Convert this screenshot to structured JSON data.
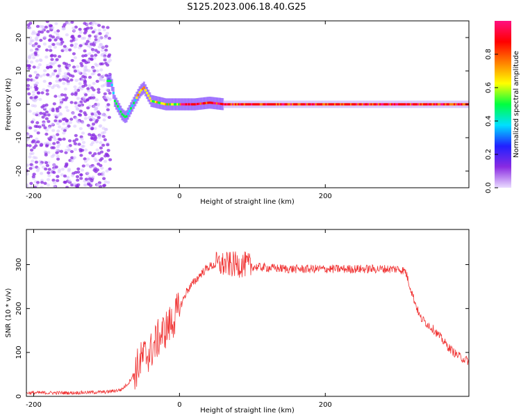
{
  "title": "S125.2023.006.18.40.G25",
  "chart_data": [
    {
      "type": "heatmap",
      "xlabel": "Height of straight line (km)",
      "ylabel": "Frequency (Hz)",
      "xlim": [
        -210,
        397
      ],
      "ylim": [
        -25,
        25
      ],
      "xticks": [
        -200,
        0,
        200
      ],
      "yticks": [
        -20,
        -10,
        0,
        10,
        20
      ],
      "colorbar": {
        "label": "Normalized spectral amplitude",
        "range": [
          0,
          1
        ],
        "ticks": [
          "0.0",
          "0.2",
          "0.4",
          "0.6",
          "0.8"
        ],
        "colors": [
          "#eadcff",
          "#8a2be2",
          "#2020ff",
          "#00e0ff",
          "#00ff40",
          "#ffff00",
          "#ff8000",
          "#ff0000",
          "#ff1080"
        ]
      },
      "ridge": {
        "x": [
          -100,
          -95,
          -90,
          -85,
          -80,
          -75,
          -70,
          -65,
          -60,
          -55,
          -50,
          -45,
          -40,
          -30,
          -20,
          0,
          20,
          40,
          60,
          100,
          180,
          250,
          300,
          397
        ],
        "y": [
          7,
          7,
          1,
          -1,
          -3,
          -4,
          -2,
          0,
          2,
          4,
          5,
          3,
          1,
          0.5,
          0,
          0,
          0,
          0.5,
          0,
          0,
          0,
          0,
          0,
          0
        ]
      },
      "grid": false
    },
    {
      "type": "line",
      "xlabel": "Height of straight line (km)",
      "ylabel": "SNR (10 * v/v)",
      "xlim": [
        -210,
        397
      ],
      "ylim": [
        0,
        380
      ],
      "xticks": [
        -200,
        0,
        200
      ],
      "yticks": [
        0,
        100,
        200,
        300
      ],
      "series": [
        {
          "color": "#f03232",
          "x": [
            -210,
            -150,
            -100,
            -80,
            -70,
            -60,
            -50,
            -40,
            -30,
            -20,
            -10,
            0,
            10,
            20,
            30,
            40,
            50,
            60,
            70,
            80,
            90,
            100,
            150,
            200,
            250,
            300,
            310,
            320,
            330,
            340,
            350,
            360,
            370,
            380,
            390,
            397
          ],
          "y": [
            8,
            8,
            10,
            15,
            30,
            60,
            90,
            100,
            130,
            150,
            170,
            200,
            240,
            260,
            280,
            295,
            300,
            300,
            300,
            300,
            300,
            295,
            290,
            290,
            290,
            290,
            285,
            230,
            180,
            165,
            150,
            130,
            110,
            95,
            85,
            80
          ]
        }
      ],
      "grid": false
    }
  ]
}
